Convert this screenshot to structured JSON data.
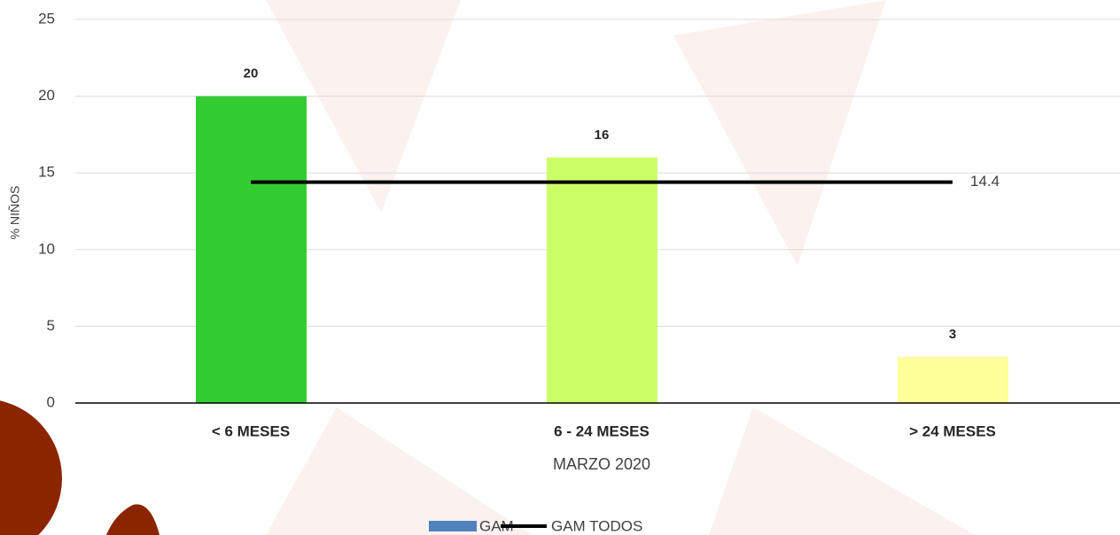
{
  "chart_data": {
    "type": "bar",
    "categories": [
      "< 6 MESES",
      "6 - 24 MESES",
      "> 24 MESES"
    ],
    "series": [
      {
        "name": "GAM",
        "color": "#4f81bd",
        "colors": [
          "#33cc33",
          "#ccff66",
          "#ffff99"
        ],
        "values": [
          20,
          16,
          3
        ]
      },
      {
        "name": "GAM TODOS",
        "type": "line",
        "color": "#000000",
        "values": [
          14.4,
          14.4,
          14.4
        ]
      }
    ],
    "xlabel": "MARZO 2020",
    "ylabel": "% NIÑOS",
    "ylim": [
      0,
      25
    ],
    "yticks": [
      0,
      5,
      10,
      15,
      20,
      25
    ],
    "grid": true,
    "legend": "bottom"
  }
}
